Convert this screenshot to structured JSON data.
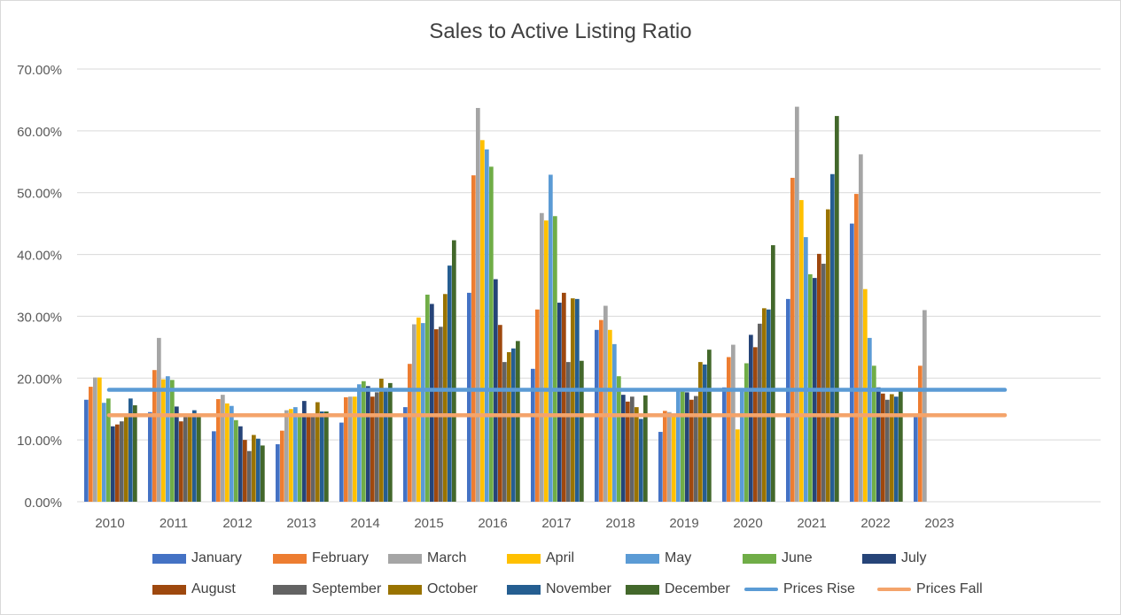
{
  "chart_data": {
    "type": "bar",
    "title": "Sales to Active Listing Ratio",
    "xlabel": "",
    "ylabel": "",
    "ylim": [
      0,
      70
    ],
    "y_ticks": [
      "0.00%",
      "10.00%",
      "20.00%",
      "30.00%",
      "40.00%",
      "50.00%",
      "60.00%",
      "70.00%"
    ],
    "grid": true,
    "legend_position": "bottom",
    "categories": [
      "2010",
      "2011",
      "2012",
      "2013",
      "2014",
      "2015",
      "2016",
      "2017",
      "2018",
      "2019",
      "2020",
      "2021",
      "2022",
      "2023"
    ],
    "series": [
      {
        "name": "January",
        "color": "#4472c4",
        "values": [
          16.5,
          14.5,
          11.4,
          9.3,
          12.8,
          15.3,
          33.8,
          21.5,
          27.8,
          11.3,
          18.5,
          32.8,
          45.0,
          13.8
        ]
      },
      {
        "name": "February",
        "color": "#ed7d31",
        "values": [
          18.6,
          21.3,
          16.6,
          11.5,
          16.9,
          22.3,
          52.8,
          31.1,
          29.4,
          14.7,
          23.4,
          52.4,
          49.8,
          22.0
        ]
      },
      {
        "name": "March",
        "color": "#a5a5a5",
        "values": [
          20.1,
          26.5,
          17.3,
          14.8,
          17.0,
          28.7,
          63.7,
          46.7,
          31.7,
          14.5,
          25.4,
          63.9,
          56.2,
          31.0
        ]
      },
      {
        "name": "April",
        "color": "#ffc000",
        "values": [
          20.1,
          19.8,
          15.9,
          15.0,
          17.0,
          29.8,
          58.5,
          45.5,
          27.8,
          14.0,
          11.7,
          48.8,
          34.4,
          null
        ]
      },
      {
        "name": "May",
        "color": "#5b9bd5",
        "values": [
          16.0,
          20.3,
          15.5,
          15.3,
          19.0,
          28.9,
          57.0,
          52.9,
          25.5,
          18.0,
          18.0,
          42.8,
          26.5,
          null
        ]
      },
      {
        "name": "June",
        "color": "#70ad47",
        "values": [
          16.7,
          19.7,
          13.2,
          14.2,
          19.5,
          33.5,
          54.2,
          46.2,
          20.3,
          18.0,
          22.4,
          36.8,
          22.0,
          null
        ]
      },
      {
        "name": "July",
        "color": "#264478",
        "values": [
          12.2,
          15.4,
          12.2,
          16.3,
          18.7,
          32.0,
          36.0,
          32.2,
          17.3,
          17.7,
          27.0,
          36.2,
          18.5,
          null
        ]
      },
      {
        "name": "August",
        "color": "#9e480e",
        "values": [
          12.5,
          13.0,
          10.0,
          14.0,
          17.0,
          27.9,
          28.6,
          33.8,
          16.2,
          16.5,
          25.0,
          40.1,
          17.5,
          null
        ]
      },
      {
        "name": "September",
        "color": "#636363",
        "values": [
          13.0,
          13.9,
          8.2,
          14.1,
          17.7,
          28.3,
          22.6,
          22.6,
          17.0,
          17.1,
          28.8,
          38.5,
          16.5,
          null
        ]
      },
      {
        "name": "October",
        "color": "#997300",
        "values": [
          14.0,
          14.0,
          10.8,
          16.1,
          19.9,
          33.6,
          24.2,
          32.9,
          15.3,
          22.6,
          31.3,
          47.3,
          17.4,
          null
        ]
      },
      {
        "name": "November",
        "color": "#255e91",
        "values": [
          16.7,
          14.8,
          10.2,
          14.6,
          18.0,
          38.2,
          24.8,
          32.8,
          13.4,
          22.2,
          31.1,
          53.0,
          17.0,
          null
        ]
      },
      {
        "name": "December",
        "color": "#43682b",
        "values": [
          15.6,
          14.0,
          9.1,
          14.6,
          19.2,
          42.3,
          26.0,
          22.8,
          17.2,
          24.6,
          41.5,
          62.4,
          17.9,
          null
        ]
      }
    ],
    "reference_lines": [
      {
        "name": "Prices Rise",
        "color": "#5b9bd5",
        "value": 18.1
      },
      {
        "name": "Prices Fall",
        "color": "#f4a46b",
        "value": 14.0
      }
    ]
  }
}
